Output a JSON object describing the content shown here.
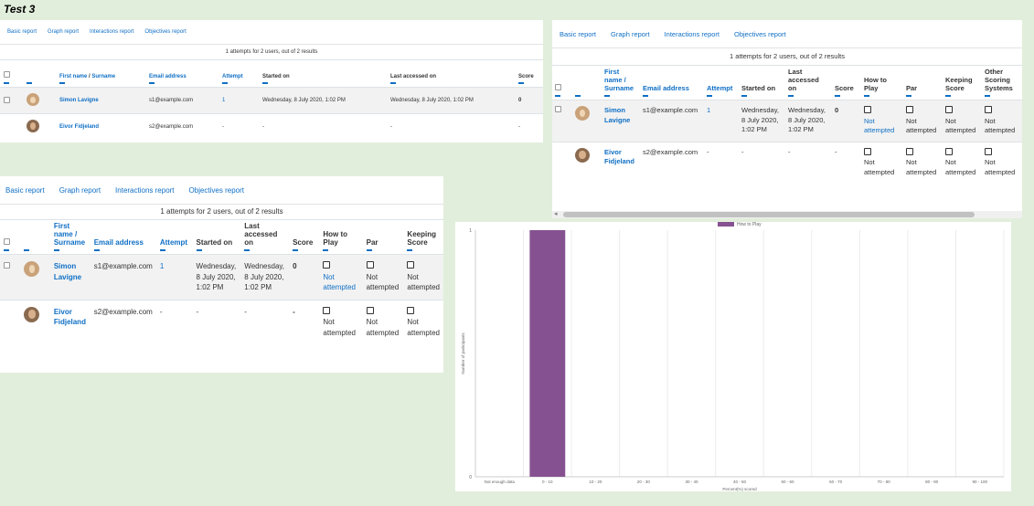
{
  "page": {
    "title": "Test 3"
  },
  "tabs": [
    "Basic report",
    "Graph report",
    "Interactions report",
    "Objectives report"
  ],
  "results_text": "1 attempts for 2 users, out of 2 results",
  "panel_a": {
    "headers": {
      "first_name": "First name",
      "sep": " / ",
      "surname": "Surname",
      "email": "Email address",
      "attempt": "Attempt",
      "started": "Started on",
      "last": "Last accessed on",
      "score": "Score"
    },
    "rows": [
      {
        "name": "Simon Lavigne",
        "email": "s1@example.com",
        "attempt": "1",
        "started": "Wednesday, 8 July 2020, 1:02 PM",
        "last": "Wednesday, 8 July 2020, 1:02 PM",
        "score": "0"
      },
      {
        "name": "Eivor Fidjeland",
        "email": "s2@example.com",
        "attempt": "-",
        "started": "-",
        "last": "-",
        "score": "-"
      }
    ]
  },
  "panel_b": {
    "headers": {
      "first_name_l1": "First",
      "first_name_l2": "name /",
      "surname": "Surname",
      "email": "Email address",
      "attempt": "Attempt",
      "started": "Started on",
      "last_l1": "Last",
      "last_l2": "accessed",
      "last_l3": "on",
      "score": "Score",
      "q1_l1": "How to",
      "q1_l2": "Play",
      "q2": "Par",
      "q3_l1": "Keeping",
      "q3_l2": "Score",
      "q4_l1": "Other",
      "q4_l2": "Scoring",
      "q4_l3": "Systems"
    },
    "rows": [
      {
        "first": "Simon",
        "last_name": "Lavigne",
        "email": "s1@example.com",
        "attempt": "1",
        "started_l1": "Wednesday,",
        "started_l2": "8 July 2020,",
        "started_l3": "1:02 PM",
        "last_l1": "Wednesday,",
        "last_l2": "8 July 2020,",
        "last_l3": "1:02 PM",
        "score": "0",
        "q1_l1": "Not",
        "q1_l2": "attempted",
        "q2_l1": "Not",
        "q2_l2": "attempted",
        "q3_l1": "Not",
        "q3_l2": "attempted",
        "q4_l1": "Not",
        "q4_l2": "attempted"
      },
      {
        "first": "Eivor",
        "last_name": "Fidjeland",
        "email": "s2@example.com",
        "attempt": "-",
        "started_l1": "-",
        "started_l2": "",
        "started_l3": "",
        "last_l1": "-",
        "last_l2": "",
        "last_l3": "",
        "score": "-",
        "q1_l1": "Not",
        "q1_l2": "attempted",
        "q2_l1": "Not",
        "q2_l2": "attempted",
        "q3_l1": "Not",
        "q3_l2": "attempted",
        "q4_l1": "Not",
        "q4_l2": "attempted"
      }
    ]
  },
  "panel_c": {
    "headers": {
      "first_name_l1": "First",
      "first_name_l2": "name /",
      "surname": "Surname",
      "email": "Email address",
      "attempt": "Attempt",
      "started": "Started on",
      "last_l1": "Last",
      "last_l2": "accessed",
      "last_l3": "on",
      "score": "Score",
      "q1_l1": "How to",
      "q1_l2": "Play",
      "q2": "Par",
      "q3_l1": "Keeping",
      "q3_l2": "Score"
    }
  },
  "chart_data": {
    "type": "bar",
    "legend": [
      "How to Play"
    ],
    "legend_position": "top",
    "categories": [
      "Not enough data",
      "0 - 10",
      "10 - 20",
      "20 - 30",
      "30 - 40",
      "40 - 50",
      "50 - 60",
      "60 - 70",
      "70 - 80",
      "80 - 90",
      "90 - 100"
    ],
    "series": [
      {
        "name": "How to Play",
        "values": [
          0,
          1,
          0,
          0,
          0,
          0,
          0,
          0,
          0,
          0,
          0
        ],
        "color": "#865191"
      }
    ],
    "ylabel": "Number of participants",
    "xlabel": "Percent(%) scored",
    "ylim": [
      0,
      1
    ],
    "yticks": [
      "0",
      "1"
    ],
    "grid": true
  }
}
